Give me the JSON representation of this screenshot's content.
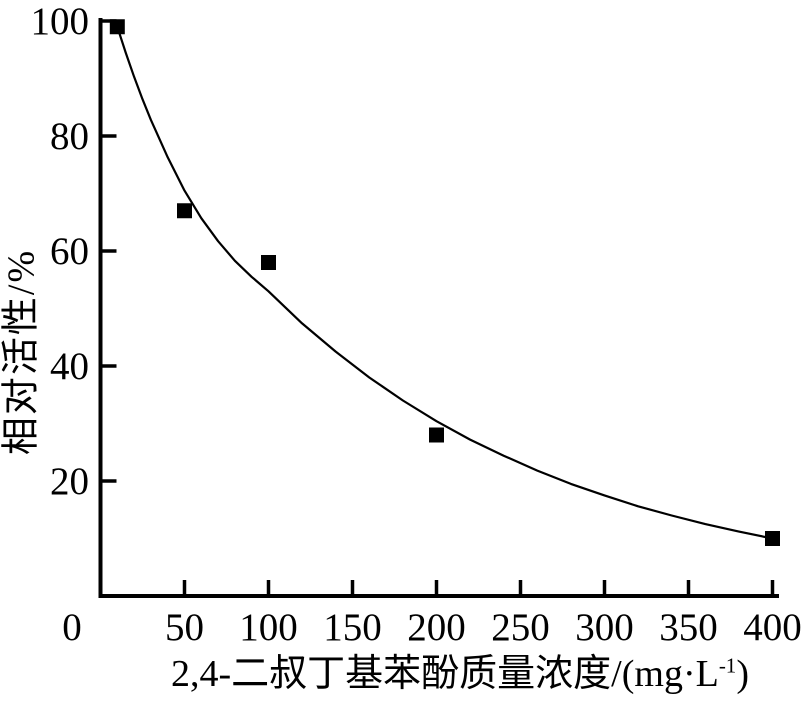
{
  "figure": {
    "background_color": "#ffffff",
    "ink_color": "#000000"
  },
  "chart_data": {
    "type": "scatter",
    "title": "",
    "xlabel_prefix": "2,4-二叔丁基苯酚质量浓度/(mg·L",
    "xlabel_sup": "-1",
    "xlabel_suffix": ")",
    "xlabel_full": "2,4-二叔丁基苯酚质量浓度/(mg·L-1)",
    "ylabel": "相对活性/%",
    "xlim": [
      0,
      400
    ],
    "ylim": [
      0,
      100
    ],
    "x_ticks": [
      50,
      100,
      150,
      200,
      250,
      300,
      350,
      400
    ],
    "y_ticks": [
      20,
      40,
      60,
      80,
      100
    ],
    "origin_label": "0",
    "grid": false,
    "legend_position": "none",
    "marker": "filled-square",
    "series": [
      {
        "name": "measured-points",
        "kind": "scatter",
        "points": [
          [
            10,
            99
          ],
          [
            50,
            67
          ],
          [
            100,
            58
          ],
          [
            200,
            28
          ],
          [
            400,
            10
          ]
        ]
      },
      {
        "name": "fitted-curve",
        "kind": "line",
        "points": [
          [
            10,
            99
          ],
          [
            15,
            94.5
          ],
          [
            20,
            90.3
          ],
          [
            25,
            86.4
          ],
          [
            30,
            82.8
          ],
          [
            40,
            76.3
          ],
          [
            50,
            70.5
          ],
          [
            60,
            65.7
          ],
          [
            70,
            61.7
          ],
          [
            80,
            58.3
          ],
          [
            90,
            55.5
          ],
          [
            100,
            53
          ],
          [
            120,
            47.4
          ],
          [
            140,
            42.5
          ],
          [
            160,
            38
          ],
          [
            180,
            34
          ],
          [
            200,
            30.4
          ],
          [
            220,
            27.2
          ],
          [
            240,
            24.4
          ],
          [
            260,
            21.8
          ],
          [
            280,
            19.5
          ],
          [
            300,
            17.5
          ],
          [
            320,
            15.6
          ],
          [
            340,
            14
          ],
          [
            360,
            12.5
          ],
          [
            380,
            11.2
          ],
          [
            400,
            10
          ]
        ]
      }
    ]
  }
}
